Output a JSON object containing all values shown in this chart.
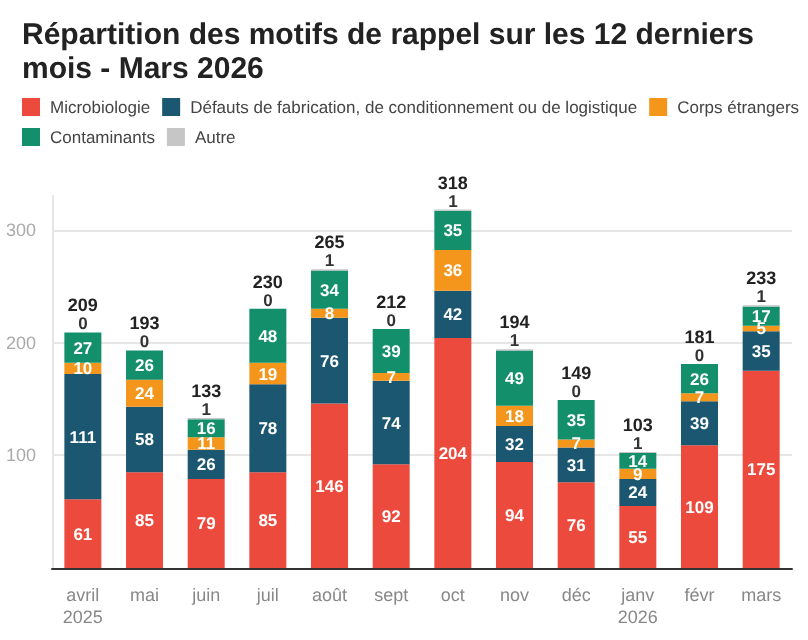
{
  "chart_data": {
    "type": "bar",
    "title": "Répartition des motifs de rappel sur les 12 derniers mois - Mars 2026",
    "categories": [
      "avril 2025",
      "mai",
      "juin",
      "juil",
      "août",
      "sept",
      "oct",
      "nov",
      "déc",
      "janv 2026",
      "févr",
      "mars"
    ],
    "stacked": true,
    "data_labels": true,
    "legend": "top left",
    "grid": "y",
    "ylim": [
      0,
      330
    ],
    "yticks": [
      {
        "value": 0,
        "label": null
      },
      100,
      200,
      300
    ],
    "series": [
      {
        "name": "Microbiologie",
        "color": "#ec4a3c",
        "values": [
          61,
          85,
          79,
          85,
          146,
          92,
          204,
          94,
          76,
          55,
          109,
          175
        ]
      },
      {
        "name": "Défauts de fabrication, de conditionnement ou de logistique",
        "color": "#1b5770",
        "values": [
          111,
          58,
          26,
          78,
          76,
          74,
          42,
          32,
          31,
          24,
          39,
          35
        ]
      },
      {
        "name": "Corps étrangers",
        "color": "#f5961c",
        "values": [
          10,
          24,
          11,
          19,
          8,
          7,
          36,
          18,
          7,
          9,
          7,
          5
        ]
      },
      {
        "name": "Contaminants",
        "color": "#138f6b",
        "values": [
          27,
          26,
          16,
          48,
          34,
          39,
          35,
          49,
          35,
          14,
          26,
          17
        ]
      },
      {
        "name": "Autre",
        "color": "#c6c6c6",
        "values": [
          0,
          0,
          1,
          0,
          1,
          0,
          1,
          1,
          0,
          1,
          0,
          1
        ]
      }
    ],
    "totals": [
      "209",
      "193",
      "133",
      "230",
      "265",
      "212",
      "318",
      "194",
      "149",
      "103",
      "181",
      "233"
    ]
  }
}
